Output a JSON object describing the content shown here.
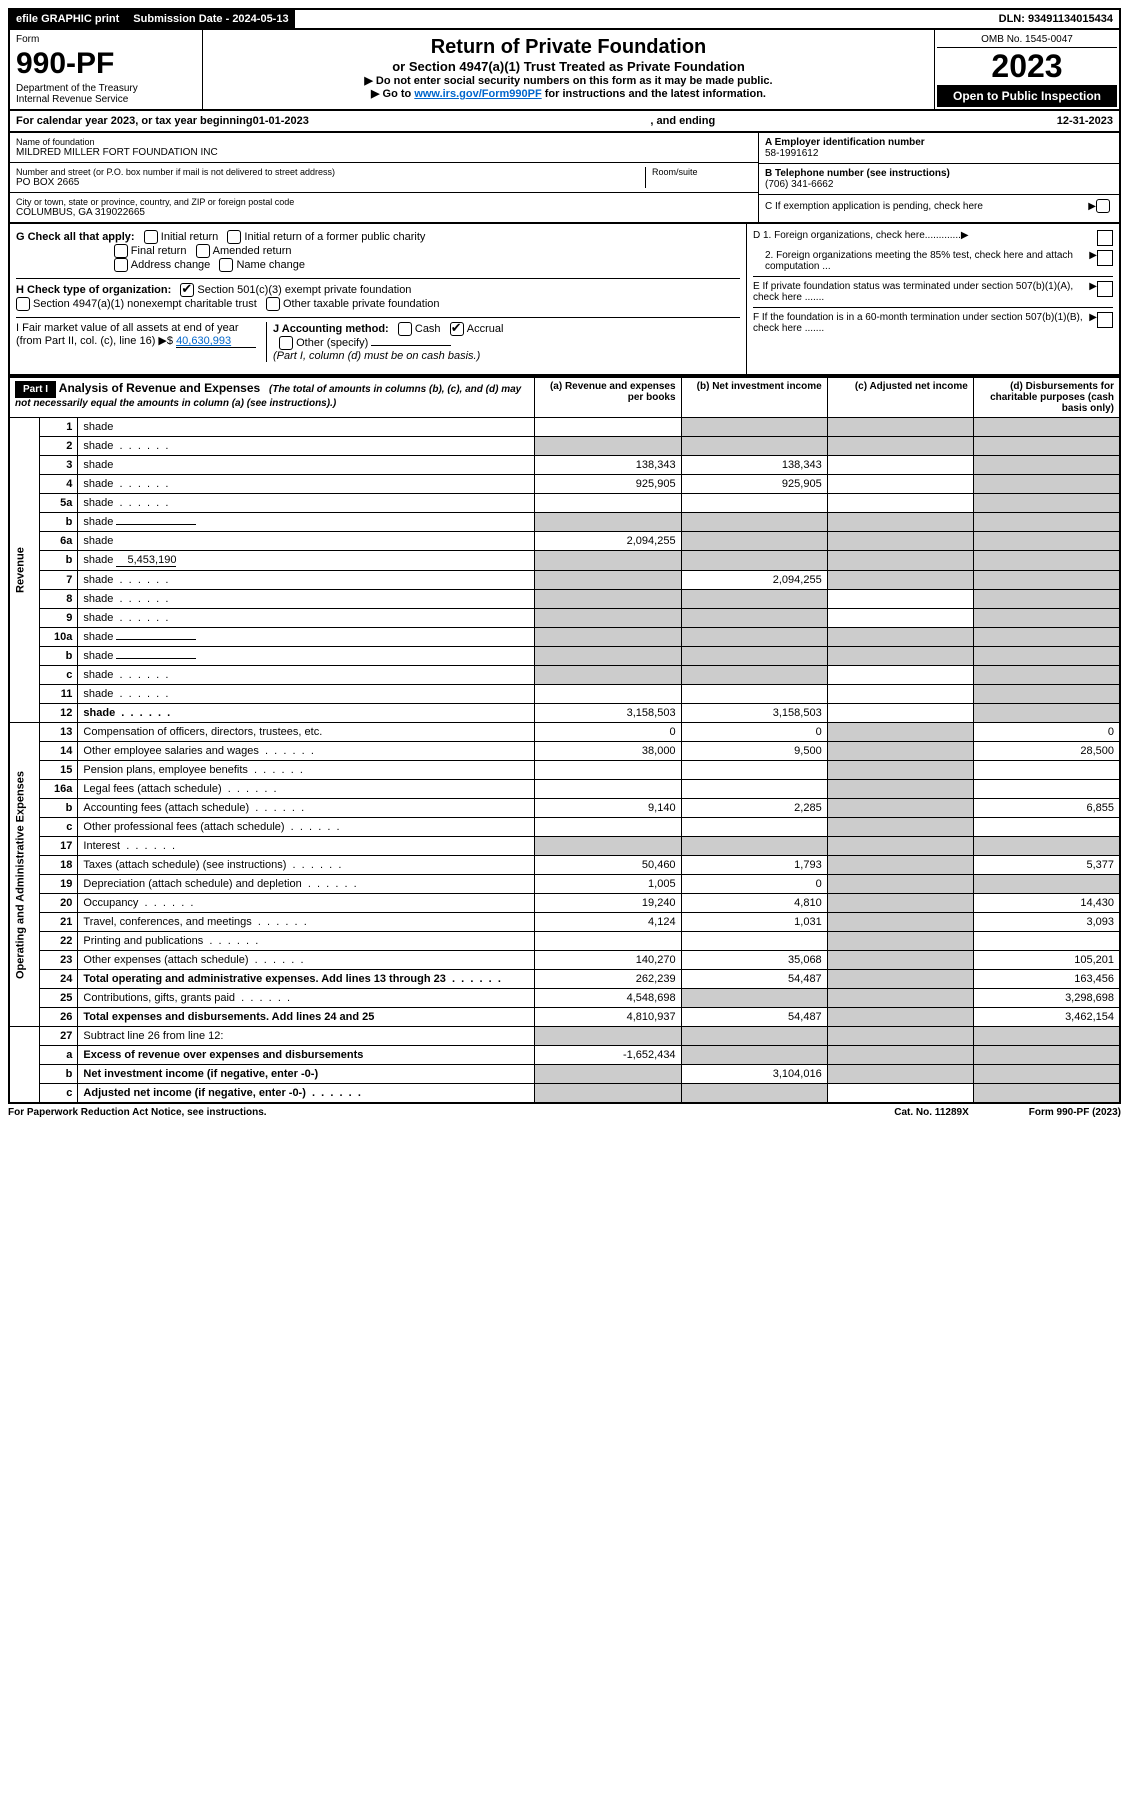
{
  "topbar": {
    "efile": "efile GRAPHIC print",
    "sub_label": "Submission Date - 2024-05-13",
    "dln": "DLN: 93491134015434"
  },
  "header": {
    "form_label": "Form",
    "form_number": "990-PF",
    "dept1": "Department of the Treasury",
    "dept2": "Internal Revenue Service",
    "title": "Return of Private Foundation",
    "subtitle": "or Section 4947(a)(1) Trust Treated as Private Foundation",
    "note1": "▶ Do not enter social security numbers on this form as it may be made public.",
    "note2_prefix": "▶ Go to ",
    "note2_link": "www.irs.gov/Form990PF",
    "note2_suffix": " for instructions and the latest information.",
    "omb": "OMB No. 1545-0047",
    "year": "2023",
    "open": "Open to Public Inspection"
  },
  "calyear": {
    "prefix": "For calendar year 2023, or tax year beginning ",
    "begin": "01-01-2023",
    "mid": ", and ending ",
    "end": "12-31-2023"
  },
  "name": {
    "name_lbl": "Name of foundation",
    "name_val": "MILDRED MILLER FORT FOUNDATION INC",
    "addr_lbl": "Number and street (or P.O. box number if mail is not delivered to street address)",
    "room_lbl": "Room/suite",
    "addr_val": "PO BOX 2665",
    "city_lbl": "City or town, state or province, country, and ZIP or foreign postal code",
    "city_val": "COLUMBUS, GA  319022665",
    "ein_lbl": "A Employer identification number",
    "ein_val": "58-1991612",
    "tel_lbl": "B Telephone number (see instructions)",
    "tel_val": "(706) 341-6662",
    "c_lbl": "C If exemption application is pending, check here"
  },
  "checks": {
    "g_lbl": "G Check all that apply:",
    "g1": "Initial return",
    "g2": "Initial return of a former public charity",
    "g3": "Final return",
    "g4": "Amended return",
    "g5": "Address change",
    "g6": "Name change",
    "h_lbl": "H Check type of organization:",
    "h1": "Section 501(c)(3) exempt private foundation",
    "h2": "Section 4947(a)(1) nonexempt charitable trust",
    "h3": "Other taxable private foundation",
    "i_lbl": "I Fair market value of all assets at end of year (from Part II, col. (c), line 16) ▶$",
    "i_val": "40,630,993",
    "j_lbl": "J Accounting method:",
    "j1": "Cash",
    "j2": "Accrual",
    "j3": "Other (specify)",
    "j_note": "(Part I, column (d) must be on cash basis.)",
    "d1": "D 1. Foreign organizations, check here.............",
    "d2": "2. Foreign organizations meeting the 85% test, check here and attach computation ...",
    "e": "E  If private foundation status was terminated under section 507(b)(1)(A), check here .......",
    "f": "F  If the foundation is in a 60-month termination under section 507(b)(1)(B), check here .......",
    "arrow": "▶"
  },
  "part1": {
    "label": "Part I",
    "title": "Analysis of Revenue and Expenses",
    "desc": "(The total of amounts in columns (b), (c), and (d) may not necessarily equal the amounts in column (a) (see instructions).)",
    "col_a": "(a) Revenue and expenses per books",
    "col_b": "(b) Net investment income",
    "col_c": "(c) Adjusted net income",
    "col_d": "(d) Disbursements for charitable purposes (cash basis only)",
    "side_rev": "Revenue",
    "side_exp": "Operating and Administrative Expenses"
  },
  "rows": [
    {
      "n": "1",
      "d": "shade",
      "a": "",
      "b": "shade",
      "c": "shade"
    },
    {
      "n": "2",
      "d": "shade",
      "a": "shade",
      "b": "shade",
      "c": "shade",
      "dots": true
    },
    {
      "n": "3",
      "d": "shade",
      "a": "138,343",
      "b": "138,343",
      "c": ""
    },
    {
      "n": "4",
      "d": "shade",
      "a": "925,905",
      "b": "925,905",
      "c": "",
      "dots": true
    },
    {
      "n": "5a",
      "d": "shade",
      "a": "",
      "b": "",
      "c": "",
      "dots": true
    },
    {
      "n": "b",
      "d": "shade",
      "a": "shade",
      "b": "shade",
      "c": "shade",
      "inline": true
    },
    {
      "n": "6a",
      "d": "shade",
      "a": "2,094,255",
      "b": "shade",
      "c": "shade"
    },
    {
      "n": "b",
      "d": "shade",
      "a": "shade",
      "b": "shade",
      "c": "shade",
      "inline": true,
      "inline_val": "5,453,190"
    },
    {
      "n": "7",
      "d": "shade",
      "a": "shade",
      "b": "2,094,255",
      "c": "shade",
      "dots": true
    },
    {
      "n": "8",
      "d": "shade",
      "a": "shade",
      "b": "shade",
      "c": "",
      "dots": true
    },
    {
      "n": "9",
      "d": "shade",
      "a": "shade",
      "b": "shade",
      "c": "",
      "dots": true
    },
    {
      "n": "10a",
      "d": "shade",
      "a": "shade",
      "b": "shade",
      "c": "shade",
      "inline": true
    },
    {
      "n": "b",
      "d": "shade",
      "a": "shade",
      "b": "shade",
      "c": "shade",
      "inline": true,
      "dots": true
    },
    {
      "n": "c",
      "d": "shade",
      "a": "shade",
      "b": "shade",
      "c": "",
      "dots": true
    },
    {
      "n": "11",
      "d": "shade",
      "a": "",
      "b": "",
      "c": "",
      "dots": true
    },
    {
      "n": "12",
      "d": "shade",
      "a": "3,158,503",
      "b": "3,158,503",
      "c": "",
      "bold": true,
      "dots": true
    }
  ],
  "exp_rows": [
    {
      "n": "13",
      "d": "Compensation of officers, directors, trustees, etc.",
      "a": "0",
      "b": "0",
      "c": "shade",
      "dd": "0"
    },
    {
      "n": "14",
      "d": "Other employee salaries and wages",
      "a": "38,000",
      "b": "9,500",
      "c": "shade",
      "dd": "28,500",
      "dots": true
    },
    {
      "n": "15",
      "d": "Pension plans, employee benefits",
      "a": "",
      "b": "",
      "c": "shade",
      "dd": "",
      "dots": true
    },
    {
      "n": "16a",
      "d": "Legal fees (attach schedule)",
      "a": "",
      "b": "",
      "c": "shade",
      "dd": "",
      "dots": true
    },
    {
      "n": "b",
      "d": "Accounting fees (attach schedule)",
      "a": "9,140",
      "b": "2,285",
      "c": "shade",
      "dd": "6,855",
      "dots": true
    },
    {
      "n": "c",
      "d": "Other professional fees (attach schedule)",
      "a": "",
      "b": "",
      "c": "shade",
      "dd": "",
      "dots": true
    },
    {
      "n": "17",
      "d": "Interest",
      "a": "shade",
      "b": "shade",
      "c": "shade",
      "dd": "shade",
      "dots": true
    },
    {
      "n": "18",
      "d": "Taxes (attach schedule) (see instructions)",
      "a": "50,460",
      "b": "1,793",
      "c": "shade",
      "dd": "5,377",
      "dots": true
    },
    {
      "n": "19",
      "d": "Depreciation (attach schedule) and depletion",
      "a": "1,005",
      "b": "0",
      "c": "shade",
      "dd": "shade",
      "dots": true
    },
    {
      "n": "20",
      "d": "Occupancy",
      "a": "19,240",
      "b": "4,810",
      "c": "shade",
      "dd": "14,430",
      "dots": true
    },
    {
      "n": "21",
      "d": "Travel, conferences, and meetings",
      "a": "4,124",
      "b": "1,031",
      "c": "shade",
      "dd": "3,093",
      "dots": true
    },
    {
      "n": "22",
      "d": "Printing and publications",
      "a": "",
      "b": "",
      "c": "shade",
      "dd": "",
      "dots": true
    },
    {
      "n": "23",
      "d": "Other expenses (attach schedule)",
      "a": "140,270",
      "b": "35,068",
      "c": "shade",
      "dd": "105,201",
      "dots": true
    },
    {
      "n": "24",
      "d": "Total operating and administrative expenses. Add lines 13 through 23",
      "a": "262,239",
      "b": "54,487",
      "c": "shade",
      "dd": "163,456",
      "bold": true,
      "dots": true
    },
    {
      "n": "25",
      "d": "Contributions, gifts, grants paid",
      "a": "4,548,698",
      "b": "shade",
      "c": "shade",
      "dd": "3,298,698",
      "dots": true
    },
    {
      "n": "26",
      "d": "Total expenses and disbursements. Add lines 24 and 25",
      "a": "4,810,937",
      "b": "54,487",
      "c": "shade",
      "dd": "3,462,154",
      "bold": true
    }
  ],
  "final_rows": [
    {
      "n": "27",
      "d": "Subtract line 26 from line 12:",
      "a": "shade",
      "b": "shade",
      "c": "shade",
      "dd": "shade"
    },
    {
      "n": "a",
      "d": "Excess of revenue over expenses and disbursements",
      "a": "-1,652,434",
      "b": "shade",
      "c": "shade",
      "dd": "shade",
      "bold": true
    },
    {
      "n": "b",
      "d": "Net investment income (if negative, enter -0-)",
      "a": "shade",
      "b": "3,104,016",
      "c": "shade",
      "dd": "shade",
      "bold": true
    },
    {
      "n": "c",
      "d": "Adjusted net income (if negative, enter -0-)",
      "a": "shade",
      "b": "shade",
      "c": "",
      "dd": "shade",
      "bold": true,
      "dots": true
    }
  ],
  "footer": {
    "left": "For Paperwork Reduction Act Notice, see instructions.",
    "mid": "Cat. No. 11289X",
    "right": "Form 990-PF (2023)"
  }
}
